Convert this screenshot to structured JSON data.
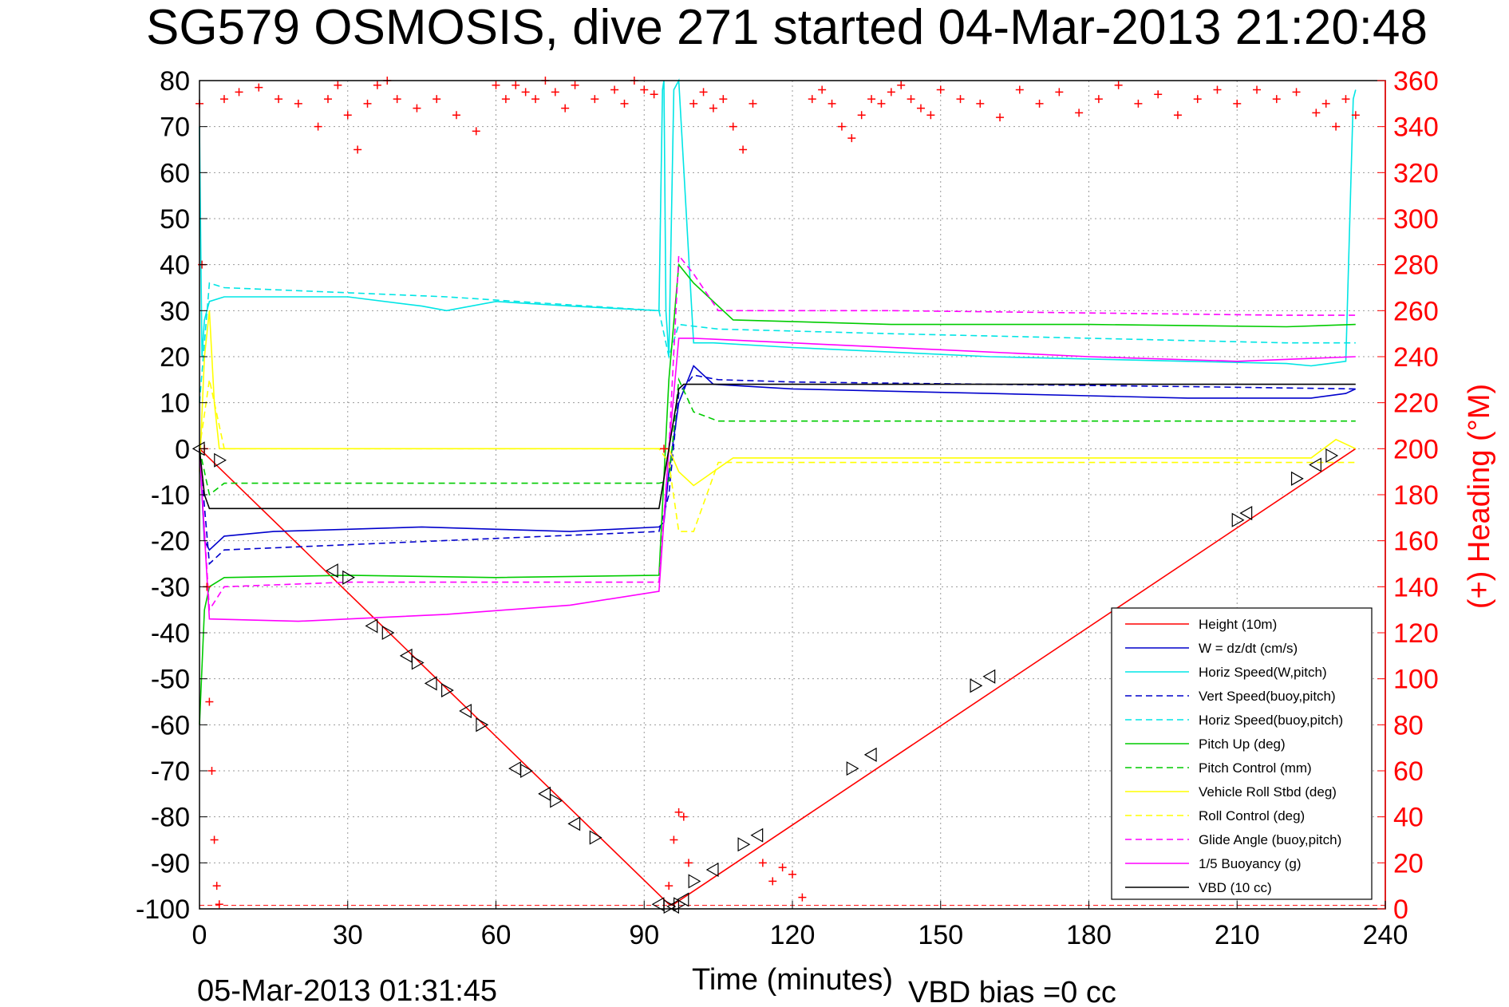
{
  "title": "SG579 OSMOSIS, dive 271 started 04-Mar-2013 21:20:48",
  "footer": {
    "timestamp": "05-Mar-2013 01:31:45",
    "vbd_bias": "VBD bias =0 cc"
  },
  "chart_data": {
    "type": "line",
    "title": "SG579 OSMOSIS, dive 271 started 04-Mar-2013 21:20:48",
    "xlabel": "Time (minutes)",
    "ylabel": "",
    "ylabel_right": "(+) Heading (°M)",
    "xlim": [
      0,
      240
    ],
    "ylim": [
      -100,
      80
    ],
    "ylim_right": [
      0,
      360
    ],
    "xticks": [
      0,
      30,
      60,
      90,
      120,
      150,
      180,
      210,
      240
    ],
    "yticks": [
      80,
      70,
      60,
      50,
      40,
      30,
      20,
      10,
      0,
      -10,
      -20,
      -30,
      -40,
      -50,
      -60,
      -70,
      -80,
      -90,
      -100
    ],
    "yticks_right": [
      360,
      340,
      320,
      300,
      280,
      260,
      240,
      220,
      200,
      180,
      160,
      140,
      120,
      100,
      80,
      60,
      40,
      20,
      0
    ],
    "grid": true,
    "legend_position": "bottom-right",
    "colors": {
      "red": "#ff0000",
      "blue": "#0000cc",
      "cyan": "#00e5e5",
      "green": "#00cc00",
      "yellow": "#ffff00",
      "magenta": "#ff00ff",
      "black": "#000000"
    },
    "series": [
      {
        "name": "Height (10m)",
        "color": "#ff0000",
        "style": "solid",
        "x": [
          0,
          95,
          96,
          234
        ],
        "y": [
          0,
          -99,
          -99,
          0
        ]
      },
      {
        "name": "W = dz/dt (cm/s)",
        "color": "#0000cc",
        "style": "solid",
        "x": [
          0,
          1,
          2,
          5,
          15,
          30,
          45,
          60,
          75,
          93,
          94,
          95,
          97,
          100,
          104,
          120,
          140,
          160,
          180,
          200,
          220,
          225,
          232,
          234
        ],
        "y": [
          0,
          -20,
          -22,
          -19,
          -18,
          -17.5,
          -17,
          -17.5,
          -18,
          -17,
          -16,
          -5,
          10,
          18,
          14,
          13,
          12.5,
          12,
          11.5,
          11,
          11,
          11,
          12,
          13
        ]
      },
      {
        "name": "Horiz Speed(W,pitch)",
        "color": "#00e5e5",
        "style": "solid",
        "x": [
          0,
          0.5,
          1,
          2,
          5,
          15,
          30,
          45,
          50,
          60,
          75,
          93,
          93.7,
          94,
          94.4,
          95,
          96,
          97,
          100,
          104,
          120,
          140,
          160,
          180,
          200,
          220,
          225,
          232,
          233.5,
          234
        ],
        "y": [
          70,
          20,
          28,
          32,
          33,
          33,
          33,
          31,
          30,
          32,
          31,
          30,
          78,
          80,
          30,
          20,
          78,
          80,
          23,
          23,
          22,
          21,
          20,
          19.5,
          19,
          18.5,
          18,
          19,
          76,
          78
        ]
      },
      {
        "name": "Vert Speed(buoy,pitch)",
        "color": "#0000cc",
        "style": "dashed",
        "x": [
          0,
          2,
          5,
          93,
          95,
          97,
          100,
          105,
          120,
          160,
          200,
          234
        ],
        "y": [
          0,
          -25,
          -22,
          -18,
          -10,
          12,
          16,
          15,
          14.5,
          14,
          13.5,
          13
        ]
      },
      {
        "name": "Horiz Speed(buoy,pitch)",
        "color": "#00e5e5",
        "style": "dashed",
        "x": [
          0,
          2,
          5,
          50,
          93,
          95,
          97,
          105,
          140,
          180,
          220,
          234
        ],
        "y": [
          10,
          36,
          35,
          33,
          30,
          20,
          27,
          26,
          25,
          24,
          23,
          23
        ]
      },
      {
        "name": "Pitch Up (deg)",
        "color": "#00cc00",
        "style": "solid",
        "x": [
          0,
          1,
          2,
          5,
          30,
          60,
          93,
          95,
          97,
          100,
          104,
          108,
          140,
          180,
          220,
          234
        ],
        "y": [
          -60,
          -35,
          -30,
          -28,
          -27.5,
          -28,
          -27.5,
          15,
          40,
          36,
          32,
          28,
          27,
          27,
          26.5,
          27
        ]
      },
      {
        "name": "Pitch Control (mm)",
        "color": "#00cc00",
        "style": "dashed",
        "x": [
          0,
          2,
          5,
          93,
          95,
          97,
          100,
          105,
          140,
          200,
          234
        ],
        "y": [
          0,
          -10,
          -7.5,
          -7.5,
          -7,
          15,
          8,
          6,
          6,
          6,
          6
        ]
      },
      {
        "name": "Vehicle Roll Stbd (deg)",
        "color": "#ffff00",
        "style": "solid",
        "x": [
          0,
          1,
          2,
          3,
          4,
          20,
          40,
          60,
          80,
          93,
          95,
          97,
          100,
          108,
          130,
          150,
          170,
          190,
          210,
          225,
          230,
          234
        ],
        "y": [
          -5,
          20,
          30,
          10,
          0,
          0,
          0,
          0,
          0,
          0,
          0,
          -5,
          -8,
          -2,
          -2,
          -2,
          -2,
          -2,
          -2,
          -2,
          2,
          0
        ]
      },
      {
        "name": "Roll Control (deg)",
        "color": "#ffff00",
        "style": "dashed",
        "x": [
          0,
          2,
          5,
          93,
          95,
          97,
          100,
          105,
          234
        ],
        "y": [
          0,
          15,
          0,
          0,
          -3,
          -18,
          -18,
          -3,
          -3
        ]
      },
      {
        "name": "Glide Angle (buoy,pitch)",
        "color": "#ff00ff",
        "style": "dashed",
        "x": [
          0,
          2,
          5,
          30,
          60,
          93,
          95,
          97,
          100,
          105,
          140,
          180,
          220,
          234
        ],
        "y": [
          0,
          -35,
          -30,
          -29,
          -29,
          -29,
          0,
          42,
          38,
          30,
          30,
          29.5,
          29,
          29
        ]
      },
      {
        "name": "1/5 Buoyancy (g)",
        "color": "#ff00ff",
        "style": "solid",
        "x": [
          0,
          2,
          20,
          50,
          75,
          93,
          95,
          97,
          100,
          120,
          150,
          180,
          210,
          234
        ],
        "y": [
          0,
          -37,
          -37.5,
          -36,
          -34,
          -31,
          0,
          24,
          24,
          23,
          21.5,
          20,
          19,
          20
        ]
      },
      {
        "name": "VBD (10 cc)",
        "color": "#000000",
        "style": "solid",
        "x": [
          0,
          1,
          2,
          93,
          95,
          97,
          98,
          234
        ],
        "y": [
          0,
          -10,
          -13,
          -13,
          0,
          13,
          14,
          14
        ]
      }
    ],
    "heading": {
      "name": "(+) Heading (°M)",
      "color": "#ff0000",
      "marker": "+",
      "x": [
        0,
        0.5,
        1,
        1.5,
        2,
        2.5,
        3,
        3.5,
        4,
        5,
        8,
        12,
        16,
        20,
        24,
        26,
        28,
        30,
        32,
        34,
        36,
        38,
        40,
        44,
        48,
        52,
        56,
        60,
        62,
        64,
        66,
        68,
        70,
        72,
        74,
        76,
        80,
        84,
        86,
        88,
        90,
        92,
        94,
        95,
        96,
        97,
        98,
        99,
        100,
        102,
        104,
        106,
        108,
        110,
        112,
        114,
        116,
        118,
        120,
        122,
        124,
        126,
        128,
        130,
        132,
        134,
        136,
        138,
        140,
        142,
        144,
        146,
        148,
        150,
        154,
        158,
        162,
        166,
        170,
        174,
        178,
        182,
        186,
        190,
        194,
        198,
        202,
        206,
        210,
        214,
        218,
        222,
        226,
        228,
        230,
        232,
        234
      ],
      "y": [
        350,
        280,
        200,
        140,
        90,
        60,
        30,
        10,
        2,
        352,
        355,
        357,
        352,
        350,
        340,
        352,
        358,
        345,
        330,
        350,
        358,
        360,
        352,
        348,
        352,
        345,
        338,
        358,
        352,
        358,
        355,
        352,
        360,
        355,
        348,
        358,
        352,
        356,
        350,
        360,
        356,
        354,
        200,
        10,
        30,
        42,
        40,
        20,
        350,
        355,
        348,
        352,
        340,
        330,
        350,
        20,
        12,
        18,
        15,
        5,
        352,
        356,
        350,
        340,
        335,
        345,
        352,
        350,
        355,
        358,
        352,
        348,
        345,
        356,
        352,
        350,
        344,
        356,
        350,
        355,
        346,
        352,
        358,
        350,
        354,
        345,
        352,
        356,
        350,
        356,
        352,
        355,
        346,
        350,
        340,
        352,
        345
      ]
    },
    "marker_triangles": {
      "x": [
        0,
        4,
        27,
        30,
        35,
        38,
        42,
        44,
        47,
        50,
        54,
        57,
        64,
        66,
        70,
        72,
        76,
        80,
        93,
        95,
        96,
        97,
        98,
        100,
        104,
        110,
        113,
        132,
        136,
        157,
        160,
        210,
        212,
        222,
        226,
        229
      ],
      "y": [
        0,
        -2.5,
        -26.5,
        -28,
        -38.5,
        -40,
        -45,
        -46.5,
        -51,
        -52.5,
        -57,
        -60,
        -69.5,
        -70,
        -75,
        -76.5,
        -81.5,
        -84.5,
        -99,
        -99.5,
        -99.5,
        -99,
        -98,
        -94,
        -91.5,
        -86,
        -84,
        -69.5,
        -66.5,
        -51.5,
        -49.5,
        -15.5,
        -14,
        -6.5,
        -3.5,
        -1.5
      ]
    }
  }
}
